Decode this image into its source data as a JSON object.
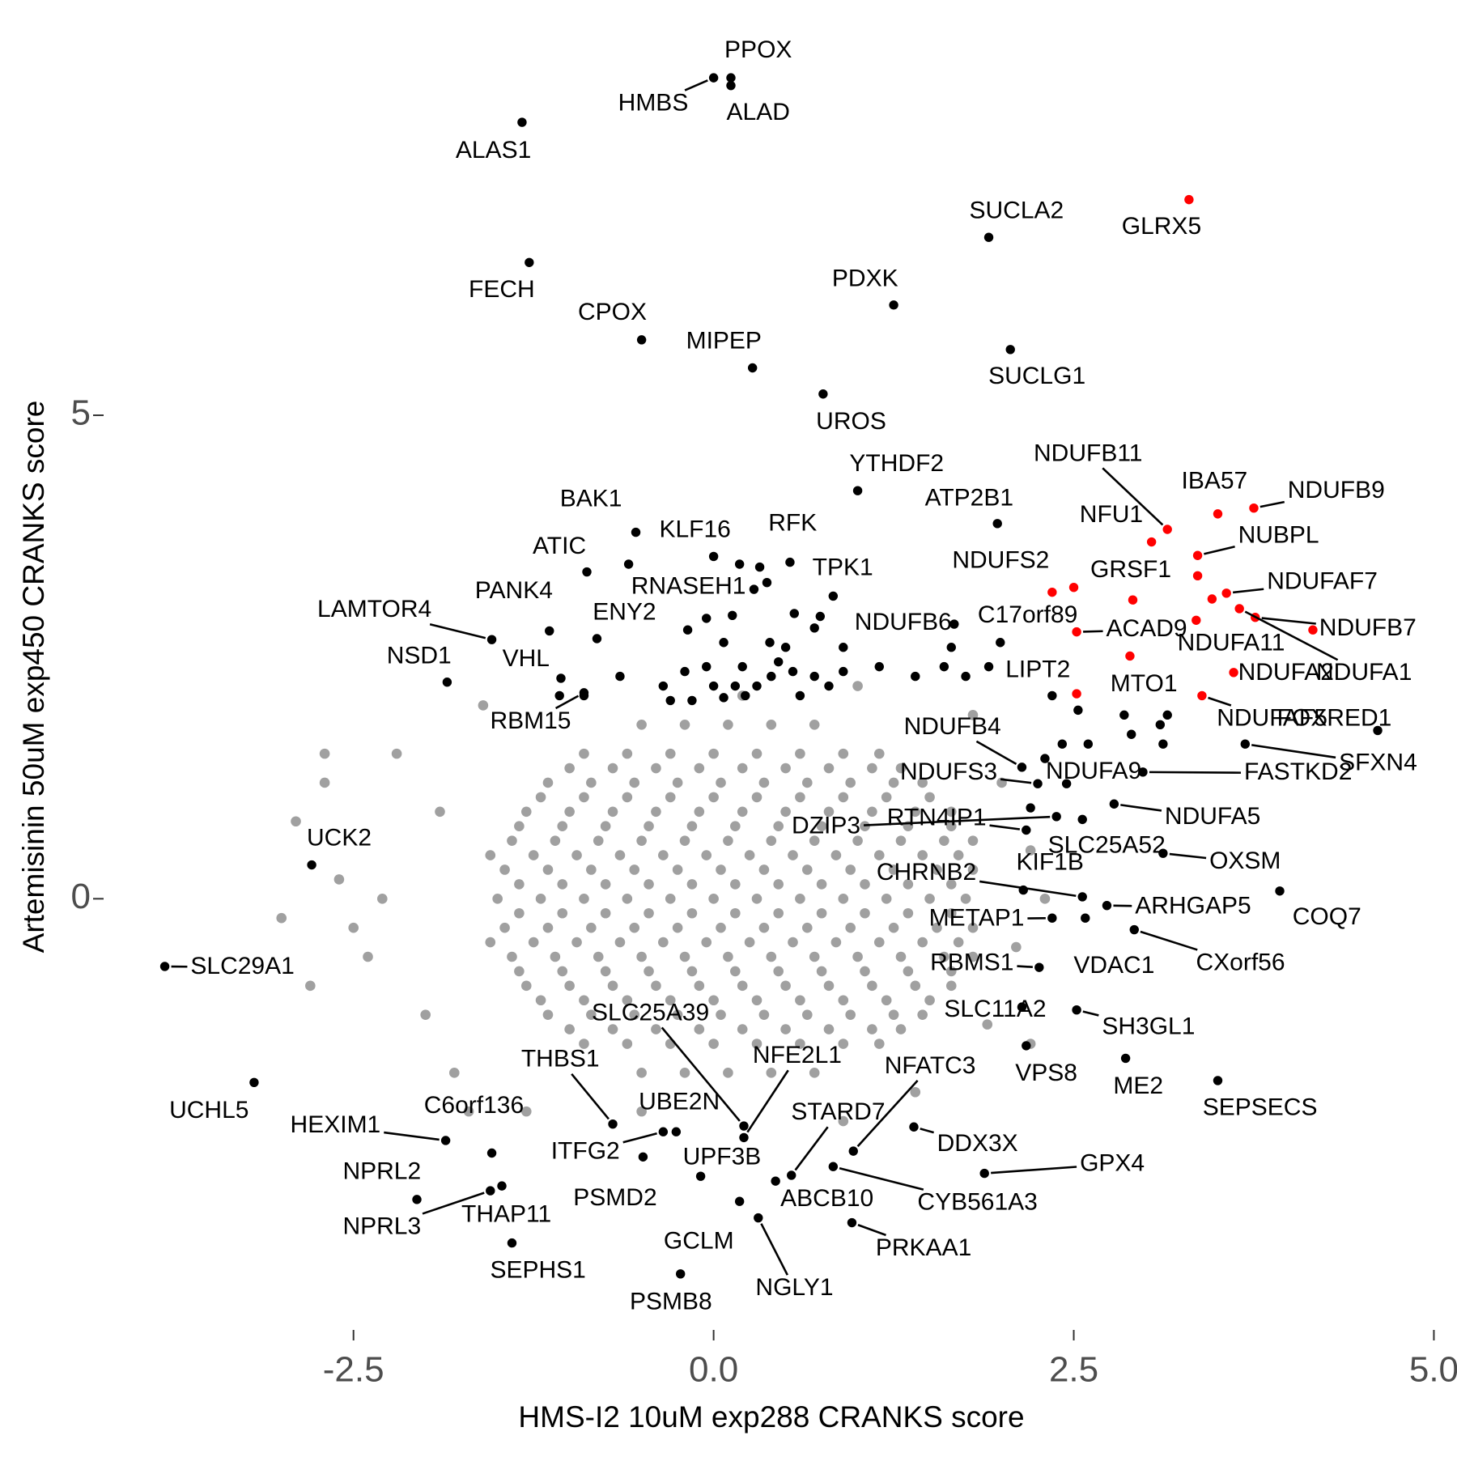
{
  "chart_data": {
    "type": "scatter",
    "x_label": "HMS-I2 10uM exp288 CRANKS score",
    "y_label": "Artemisinin 50uM exp450 CRANKS score",
    "xlim": [
      -3.92,
      5.02
    ],
    "ylim": [
      -4.3,
      8.65
    ],
    "xticks": [
      -2.5,
      {
        "value": 0,
        "label": "0.0"
      },
      2.5,
      {
        "value": 5,
        "label": "5.0"
      }
    ],
    "yticks": [
      0,
      5
    ],
    "grid": false,
    "series": [
      {
        "color": "#a0a0a0",
        "x": [
          -0.5,
          -0.2,
          0.1,
          0.4,
          0.7,
          -0.9,
          -0.6,
          -0.3,
          0,
          0.3,
          0.6,
          0.9,
          1.15,
          -1.15,
          -0.85,
          -0.55,
          -0.25,
          0.05,
          0.35,
          0.65,
          0.95,
          1.25,
          1.45,
          -1.3,
          -1,
          -0.7,
          -0.4,
          -0.1,
          0.2,
          0.5,
          0.8,
          1.1,
          1.4,
          1.65,
          -1.4,
          -1.1,
          -0.8,
          -0.5,
          -0.2,
          0.1,
          0.4,
          0.7,
          1,
          1.3,
          1.6,
          1.8,
          -1.45,
          -1.15,
          -0.85,
          -0.55,
          -0.25,
          0.05,
          0.35,
          0.65,
          0.95,
          1.25,
          1.55,
          1.8,
          -1.5,
          -1.2,
          -0.9,
          -0.6,
          -0.3,
          0,
          0.3,
          0.6,
          0.9,
          1.2,
          1.5,
          1.75,
          -1.45,
          -1.15,
          -0.85,
          -0.55,
          -0.25,
          0.05,
          0.35,
          0.65,
          0.95,
          1.25,
          1.55,
          1.8,
          -1.4,
          -1.1,
          -0.8,
          -0.5,
          -0.2,
          0.1,
          0.4,
          0.7,
          1,
          1.3,
          1.6,
          1.8,
          -1.3,
          -1,
          -0.7,
          -0.4,
          -0.1,
          0.2,
          0.5,
          0.8,
          1.1,
          1.4,
          1.65,
          -1.15,
          -0.85,
          -0.55,
          -0.25,
          0.05,
          0.35,
          0.65,
          0.95,
          1.25,
          1.45,
          -0.9,
          -0.6,
          -0.3,
          0,
          0.3,
          0.6,
          0.9,
          1.15,
          -0.5,
          -0.2,
          0.1,
          0.4,
          0.7,
          -1,
          -0.7,
          -0.4,
          -0.1,
          0.2,
          0.5,
          0.8,
          1.1,
          1.3,
          -1.2,
          -0.9,
          -0.6,
          -0.3,
          0,
          0.3,
          0.6,
          0.9,
          1.2,
          1.5,
          -1.35,
          -1.05,
          -0.75,
          -0.45,
          -0.15,
          0.15,
          0.45,
          0.75,
          1.05,
          1.35,
          1.65,
          -1.55,
          -1.25,
          -0.95,
          -0.65,
          -0.35,
          -0.05,
          0.25,
          0.55,
          0.85,
          1.15,
          1.45,
          1.7,
          -1.35,
          -1.05,
          -0.75,
          -0.45,
          -0.15,
          0.15,
          0.45,
          0.75,
          1.05,
          1.35,
          1.65,
          -1.35,
          -1.05,
          -0.75,
          -0.45,
          -0.15,
          0.15,
          0.45,
          0.75,
          1.05,
          1.35,
          1.65,
          -1.55,
          -1.25,
          -0.95,
          -0.65,
          -0.35,
          -0.05,
          0.25,
          0.55,
          0.85,
          1.15,
          1.45,
          1.7,
          -1.35,
          -1.05,
          -0.75,
          -0.45,
          -0.15,
          0.15,
          0.45,
          0.75,
          1.05,
          1.35,
          1.65,
          -1.2,
          -0.9,
          -0.6,
          -0.3,
          0,
          0.3,
          0.6,
          0.9,
          1.2,
          1.5,
          -1,
          -0.7,
          -0.4,
          -0.1,
          0.2,
          0.5,
          0.8,
          1.1,
          1.3,
          -2.6,
          -2.4,
          -2.9,
          -2.7,
          -2.2,
          -2.0,
          -1.8,
          -2.5,
          -2.8,
          -1.9,
          2.0,
          2.2,
          2.1,
          1.9,
          2.2,
          1.8,
          -1.6,
          -1.3,
          0.9,
          1.4,
          -0.5,
          0.2,
          -2.3,
          2.3,
          -1.7,
          1.0,
          -3.0,
          -2.7
        ],
        "values": [
          1.8,
          1.8,
          1.8,
          1.8,
          1.8,
          1.5,
          1.5,
          1.5,
          1.5,
          1.5,
          1.5,
          1.5,
          1.5,
          1.2,
          1.2,
          1.2,
          1.2,
          1.2,
          1.2,
          1.2,
          1.2,
          1.2,
          1.2,
          0.9,
          0.9,
          0.9,
          0.9,
          0.9,
          0.9,
          0.9,
          0.9,
          0.9,
          0.9,
          0.9,
          0.6,
          0.6,
          0.6,
          0.6,
          0.6,
          0.6,
          0.6,
          0.6,
          0.6,
          0.6,
          0.6,
          0.6,
          0.3,
          0.3,
          0.3,
          0.3,
          0.3,
          0.3,
          0.3,
          0.3,
          0.3,
          0.3,
          0.3,
          0.3,
          0,
          0,
          0,
          0,
          0,
          0,
          0,
          0,
          0,
          0,
          0,
          0,
          -0.3,
          -0.3,
          -0.3,
          -0.3,
          -0.3,
          -0.3,
          -0.3,
          -0.3,
          -0.3,
          -0.3,
          -0.3,
          -0.3,
          -0.6,
          -0.6,
          -0.6,
          -0.6,
          -0.6,
          -0.6,
          -0.6,
          -0.6,
          -0.6,
          -0.6,
          -0.6,
          -0.6,
          -0.9,
          -0.9,
          -0.9,
          -0.9,
          -0.9,
          -0.9,
          -0.9,
          -0.9,
          -0.9,
          -0.9,
          -0.9,
          -1.2,
          -1.2,
          -1.2,
          -1.2,
          -1.2,
          -1.2,
          -1.2,
          -1.2,
          -1.2,
          -1.2,
          -1.5,
          -1.5,
          -1.5,
          -1.5,
          -1.5,
          -1.5,
          -1.5,
          -1.5,
          -1.8,
          -1.8,
          -1.8,
          -1.8,
          -1.8,
          1.35,
          1.35,
          1.35,
          1.35,
          1.35,
          1.35,
          1.35,
          1.35,
          1.35,
          1.05,
          1.05,
          1.05,
          1.05,
          1.05,
          1.05,
          1.05,
          1.05,
          1.05,
          1.05,
          0.75,
          0.75,
          0.75,
          0.75,
          0.75,
          0.75,
          0.75,
          0.75,
          0.75,
          0.75,
          0.75,
          0.45,
          0.45,
          0.45,
          0.45,
          0.45,
          0.45,
          0.45,
          0.45,
          0.45,
          0.45,
          0.45,
          0.45,
          0.15,
          0.15,
          0.15,
          0.15,
          0.15,
          0.15,
          0.15,
          0.15,
          0.15,
          0.15,
          0.15,
          -0.15,
          -0.15,
          -0.15,
          -0.15,
          -0.15,
          -0.15,
          -0.15,
          -0.15,
          -0.15,
          -0.15,
          -0.15,
          -0.45,
          -0.45,
          -0.45,
          -0.45,
          -0.45,
          -0.45,
          -0.45,
          -0.45,
          -0.45,
          -0.45,
          -0.45,
          -0.45,
          -0.75,
          -0.75,
          -0.75,
          -0.75,
          -0.75,
          -0.75,
          -0.75,
          -0.75,
          -0.75,
          -0.75,
          -0.75,
          -1.05,
          -1.05,
          -1.05,
          -1.05,
          -1.05,
          -1.05,
          -1.05,
          -1.05,
          -1.05,
          -1.05,
          -1.35,
          -1.35,
          -1.35,
          -1.35,
          -1.35,
          -1.35,
          -1.35,
          -1.35,
          -1.35,
          0.2,
          -0.6,
          0.8,
          1.2,
          1.5,
          -1.2,
          -1.8,
          -0.3,
          -0.9,
          0.9,
          1.2,
          0.5,
          -0.5,
          -1.3,
          -1.5,
          1.9,
          2.0,
          -2.2,
          -2.3,
          -2.0,
          -2.2,
          2.1,
          0.0,
          0.0,
          -2.2,
          2.2,
          -0.2,
          1.5
        ]
      },
      {
        "color": "#000000",
        "labels": [
          "PPOX",
          "HMBS",
          "ALAD",
          "ALAS1",
          "SUCLA2",
          "FECH",
          "PDXK",
          "CPOX",
          "SUCLG1",
          "MIPEP",
          "UROS",
          "YTHDF2",
          "ATP2B1",
          "BAK1",
          "KLF16",
          "RFK",
          "ATIC",
          "TPK1",
          "RNASEH1",
          "PANK4",
          "LAMTOR4",
          "ENY2",
          "NSD1",
          "VHL",
          "RBM15",
          "NDUFB6",
          "C17orf89",
          "LIPT2",
          "FOXRED1",
          "SFXN4",
          "FASTKD2",
          "NDUFA9",
          "NDUFB4",
          "NDUFS3",
          "NDUFA5",
          "DZIP3",
          "RTN4IP1",
          "SLC25A52",
          "OXSM",
          "KIF1B",
          "CHRNB2",
          "COQ7",
          "ARHGAP5",
          "METAP1",
          "CXorf56",
          "VDAC1",
          "RBMS1",
          "UCK2",
          "SLC29A1",
          "SLC11A2",
          "SH3GL1",
          "VPS8",
          "ME2",
          "SEPSECS",
          "UCHL5",
          "SLC25A39",
          "NFE2L1",
          "NFATC3",
          "THBS1",
          "UBE2N",
          "STARD7",
          "DDX3X",
          "GPX4",
          "C6orf136",
          "HEXIM1",
          "ITFG2",
          "UPF3B",
          "CYB561A3",
          "ABCB10",
          "NPRL2",
          "NPRL3",
          "THAP11",
          "PSMD2",
          "SEPHS1",
          "GCLM",
          "NGLY1",
          "PRKAA1",
          "PSMB8",
          null,
          null,
          null,
          null,
          null,
          null,
          null,
          null,
          null,
          null,
          null,
          null,
          null,
          null,
          null,
          null,
          null,
          null,
          null,
          null,
          null,
          null,
          null,
          null,
          null,
          null,
          null,
          null,
          null,
          null,
          null,
          null,
          null,
          null,
          null,
          null,
          null,
          null,
          null,
          null,
          null,
          null,
          null,
          null,
          null,
          null,
          null,
          null,
          null,
          null,
          null
        ],
        "x": [
          0.12,
          0.0,
          0.12,
          -1.33,
          1.91,
          -1.28,
          1.25,
          -0.5,
          2.06,
          0.27,
          0.76,
          1.0,
          1.97,
          -0.54,
          0.0,
          0.53,
          -0.88,
          0.83,
          0.28,
          -1.14,
          -1.54,
          -0.81,
          -1.85,
          -1.06,
          -0.9,
          1.67,
          1.99,
          1.91,
          4.61,
          3.69,
          2.98,
          2.45,
          2.14,
          2.25,
          2.78,
          2.38,
          2.17,
          2.56,
          3.12,
          2.15,
          2.56,
          3.93,
          2.73,
          2.35,
          2.92,
          2.58,
          2.26,
          -2.79,
          -3.81,
          2.14,
          2.52,
          2.17,
          2.86,
          3.5,
          -3.19,
          0.21,
          0.21,
          0.97,
          -0.7,
          -0.26,
          0.54,
          1.39,
          1.88,
          -1.54,
          -1.86,
          -0.35,
          -0.09,
          0.83,
          0.43,
          -2.06,
          -1.55,
          -1.47,
          -0.49,
          -1.4,
          0.18,
          0.31,
          0.96,
          -0.23,
          -0.59,
          0.18,
          0.32,
          0.37,
          -0.05,
          0.13,
          0.56,
          -0.18,
          0.07,
          0.39,
          0.5,
          0.7,
          0.74,
          0.2,
          -0.05,
          -0.2,
          0.0,
          0.15,
          -0.35,
          -0.3,
          -0.15,
          0.07,
          0.22,
          0.4,
          0.55,
          0.6,
          0.7,
          0.8,
          0.9,
          0.45,
          1.15,
          1.4,
          1.6,
          1.65,
          1.75,
          2.35,
          2.3,
          2.42,
          2.6,
          2.53,
          2.85,
          3.1,
          3.15,
          -0.9,
          -1.07,
          0.9,
          -0.65,
          0.3,
          2.2,
          2.9,
          3.12
        ],
        "values": [
          8.49,
          8.49,
          8.41,
          8.03,
          6.84,
          6.58,
          6.14,
          5.78,
          5.68,
          5.49,
          5.22,
          4.22,
          3.88,
          3.79,
          3.54,
          3.48,
          3.38,
          3.13,
          3.2,
          2.77,
          2.68,
          2.69,
          2.24,
          2.28,
          2.13,
          2.84,
          2.65,
          2.4,
          1.74,
          1.6,
          1.31,
          1.19,
          1.36,
          1.19,
          0.98,
          0.85,
          0.71,
          0.82,
          0.47,
          0.09,
          0.02,
          0.08,
          -0.07,
          -0.2,
          -0.32,
          -0.2,
          -0.71,
          0.35,
          -0.7,
          -1.12,
          -1.15,
          -1.52,
          -1.65,
          -1.88,
          -1.9,
          -2.35,
          -2.47,
          -2.61,
          -2.33,
          -2.41,
          -2.86,
          -2.36,
          -2.84,
          -2.63,
          -2.5,
          -2.41,
          -2.87,
          -2.77,
          -2.92,
          -3.11,
          -3.02,
          -2.97,
          -2.67,
          -3.56,
          -3.13,
          -3.3,
          -3.35,
          -3.88,
          3.46,
          3.46,
          3.43,
          3.27,
          2.9,
          2.93,
          2.95,
          2.78,
          2.65,
          2.65,
          2.6,
          2.8,
          2.92,
          2.4,
          2.4,
          2.35,
          2.2,
          2.2,
          2.2,
          2.05,
          2.05,
          2.08,
          2.1,
          2.3,
          2.35,
          2.1,
          2.3,
          2.2,
          2.35,
          2.45,
          2.4,
          2.3,
          2.4,
          2.6,
          2.3,
          2.1,
          1.45,
          1.6,
          1.6,
          1.95,
          1.9,
          1.8,
          1.9,
          2.1,
          2.1,
          2.6,
          2.3,
          2.2,
          0.94,
          1.7,
          1.6
        ]
      },
      {
        "color": "#ff0000",
        "labels": [
          "NDUFB11",
          "IBA57",
          "NDUFB9",
          "NFU1",
          "NUBPL",
          "NDUFS2",
          "GRSF1",
          "NDUFAF7",
          "NDUFB7",
          "ACAD9",
          "NDUFA11",
          "NDUFA1",
          "NDUFA2",
          "MTO1",
          "NDUFAF5",
          "GLRX5",
          null,
          null,
          null,
          null,
          null
        ],
        "x": [
          3.15,
          3.5,
          3.75,
          3.04,
          3.36,
          2.35,
          2.91,
          3.56,
          3.76,
          2.52,
          3.46,
          3.65,
          3.61,
          2.89,
          3.39,
          3.3,
          2.5,
          2.52,
          3.36,
          3.35,
          4.16
        ],
        "values": [
          3.82,
          3.98,
          4.04,
          3.69,
          3.55,
          3.17,
          3.09,
          3.16,
          2.91,
          2.76,
          3.1,
          3.0,
          2.34,
          2.51,
          2.1,
          7.23,
          3.22,
          2.12,
          3.34,
          2.88,
          2.78
        ]
      }
    ]
  }
}
